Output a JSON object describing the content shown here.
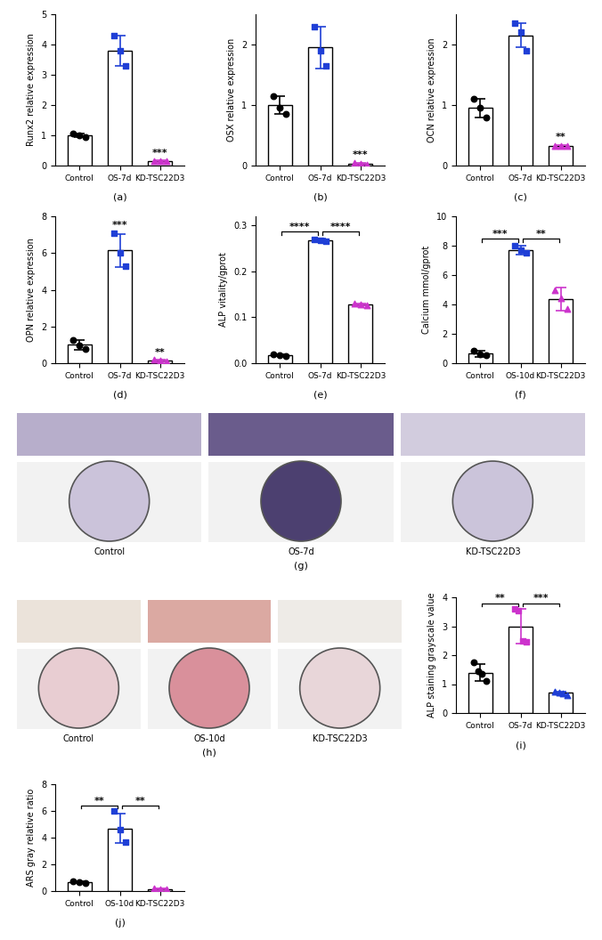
{
  "chart_data": [
    {
      "type": "bar",
      "panel_label": "(a)",
      "ylabel": "Runx2 relative expression",
      "categories": [
        "Control",
        "OS-7d",
        "KD-TSC22D3"
      ],
      "values": [
        1.0,
        3.8,
        0.15
      ],
      "errors": [
        0.05,
        0.5,
        0.02
      ],
      "points": [
        [
          1.05,
          1.0,
          0.95
        ],
        [
          4.3,
          3.8,
          3.3
        ],
        [
          0.15,
          0.15,
          0.15
        ]
      ],
      "colors": [
        "#000000",
        "#1f3fd6",
        "#cc33cc"
      ],
      "ylim": [
        0,
        5
      ],
      "yticks": [
        0,
        1,
        2,
        3,
        4,
        5
      ],
      "significance": [
        {
          "index": 2,
          "text": "***"
        }
      ],
      "comparisons": []
    },
    {
      "type": "bar",
      "panel_label": "(b)",
      "ylabel": "OSX relative expression",
      "categories": [
        "Control",
        "OS-7d",
        "KD-TSC22D3"
      ],
      "values": [
        1.0,
        1.95,
        0.03
      ],
      "errors": [
        0.15,
        0.35,
        0.02
      ],
      "points": [
        [
          1.15,
          0.95,
          0.85
        ],
        [
          2.3,
          1.9,
          1.65
        ],
        [
          0.04,
          0.03,
          0.02
        ]
      ],
      "colors": [
        "#000000",
        "#1f3fd6",
        "#cc33cc"
      ],
      "ylim": [
        0,
        2.5
      ],
      "yticks": [
        0,
        1,
        2
      ],
      "significance": [
        {
          "index": 2,
          "text": "***"
        }
      ],
      "comparisons": []
    },
    {
      "type": "bar",
      "panel_label": "(c)",
      "ylabel": "OCN relative expression",
      "categories": [
        "Control",
        "OS-7d",
        "KD-TSC22D3"
      ],
      "values": [
        0.95,
        2.15,
        0.32
      ],
      "errors": [
        0.15,
        0.2,
        0.02
      ],
      "points": [
        [
          1.1,
          0.95,
          0.8
        ],
        [
          2.35,
          2.2,
          1.9
        ],
        [
          0.33,
          0.32,
          0.32
        ]
      ],
      "colors": [
        "#000000",
        "#1f3fd6",
        "#cc33cc"
      ],
      "ylim": [
        0,
        2.5
      ],
      "yticks": [
        0,
        1,
        2
      ],
      "significance": [
        {
          "index": 2,
          "text": "**"
        }
      ],
      "comparisons": []
    },
    {
      "type": "bar",
      "panel_label": "(d)",
      "ylabel": "OPN relative expression",
      "categories": [
        "Control",
        "OS-7d",
        "KD-TSC22D3"
      ],
      "values": [
        1.0,
        6.15,
        0.15
      ],
      "errors": [
        0.25,
        0.9,
        0.05
      ],
      "points": [
        [
          1.25,
          0.95,
          0.8
        ],
        [
          7.1,
          6.0,
          5.3
        ],
        [
          0.2,
          0.15,
          0.1
        ]
      ],
      "colors": [
        "#000000",
        "#1f3fd6",
        "#cc33cc"
      ],
      "ylim": [
        0,
        8
      ],
      "yticks": [
        0,
        2,
        4,
        6,
        8
      ],
      "significance": [
        {
          "index": 1,
          "text": "***"
        },
        {
          "index": 2,
          "text": "**"
        }
      ],
      "comparisons": []
    },
    {
      "type": "bar",
      "panel_label": "(e)",
      "ylabel": "ALP vitality/gprot",
      "categories": [
        "Control",
        "OS-7d",
        "KD-TSC22D3"
      ],
      "values": [
        0.018,
        0.268,
        0.128
      ],
      "errors": [
        0.002,
        0.003,
        0.002
      ],
      "points": [
        [
          0.02,
          0.018,
          0.016
        ],
        [
          0.27,
          0.268,
          0.266
        ],
        [
          0.13,
          0.128,
          0.126
        ]
      ],
      "colors": [
        "#000000",
        "#1f3fd6",
        "#cc33cc"
      ],
      "ylim": [
        0,
        0.32
      ],
      "yticks": [
        {
          "value": 0,
          "label": "0.0"
        },
        {
          "value": 0.1,
          "label": "0.1"
        },
        {
          "value": 0.2,
          "label": "0.2"
        },
        {
          "value": 0.3,
          "label": "0.3"
        }
      ],
      "significance": [],
      "comparisons": [
        {
          "from": 0,
          "to": 1,
          "text": "****"
        },
        {
          "from": 1,
          "to": 2,
          "text": "****"
        }
      ]
    },
    {
      "type": "bar",
      "panel_label": "(f)",
      "ylabel": "Calcium mmol/gprot",
      "categories": [
        "Control",
        "OS-10d",
        "KD-TSC22D3"
      ],
      "values": [
        0.65,
        7.7,
        4.35
      ],
      "errors": [
        0.2,
        0.3,
        0.8
      ],
      "points": [
        [
          0.85,
          0.6,
          0.55
        ],
        [
          8.0,
          7.7,
          7.5
        ],
        [
          5.0,
          4.4,
          3.7
        ]
      ],
      "colors": [
        "#000000",
        "#1f3fd6",
        "#cc33cc"
      ],
      "ylim": [
        0,
        10
      ],
      "yticks": [
        0,
        2,
        4,
        6,
        8,
        10
      ],
      "significance": [],
      "comparisons": [
        {
          "from": 0,
          "to": 1,
          "text": "***"
        },
        {
          "from": 1,
          "to": 2,
          "text": "**"
        }
      ]
    },
    {
      "type": "bar",
      "panel_label": "(i)",
      "ylabel": "ALP staining grayscale value",
      "categories": [
        "Control",
        "OS-7d",
        "KD-TSC22D3"
      ],
      "values": [
        1.4,
        3.0,
        0.7
      ],
      "errors": [
        0.3,
        0.6,
        0.05
      ],
      "points": [
        [
          1.75,
          1.45,
          1.35,
          1.1
        ],
        [
          3.6,
          3.55,
          2.5,
          2.45
        ],
        [
          0.75,
          0.72,
          0.68,
          0.62
        ]
      ],
      "colors": [
        "#000000",
        "#cc33cc",
        "#1f3fd6"
      ],
      "ylim": [
        0,
        4
      ],
      "yticks": [
        0,
        1,
        2,
        3,
        4
      ],
      "significance": [],
      "comparisons": [
        {
          "from": 0,
          "to": 1,
          "text": "**"
        },
        {
          "from": 1,
          "to": 2,
          "text": "***"
        }
      ]
    },
    {
      "type": "bar",
      "panel_label": "(j)",
      "ylabel": "ARS gray relative ratio",
      "categories": [
        "Control",
        "OS-10d",
        "KD-TSC22D3"
      ],
      "values": [
        0.65,
        4.7,
        0.15
      ],
      "errors": [
        0.08,
        1.1,
        0.03
      ],
      "points": [
        [
          0.75,
          0.65,
          0.6
        ],
        [
          6.0,
          4.6,
          3.7
        ],
        [
          0.17,
          0.15,
          0.13
        ]
      ],
      "colors": [
        "#000000",
        "#1f3fd6",
        "#cc33cc"
      ],
      "ylim": [
        0,
        8
      ],
      "yticks": [
        0,
        2,
        4,
        6,
        8
      ],
      "significance": [],
      "comparisons": [
        {
          "from": 0,
          "to": 1,
          "text": "**"
        },
        {
          "from": 1,
          "to": 2,
          "text": "**"
        }
      ]
    }
  ],
  "image_panels": [
    {
      "panel_label": "(g)",
      "categories": [
        "Control",
        "OS-7d",
        "KD-TSC22D3"
      ]
    },
    {
      "panel_label": "(h)",
      "categories": [
        "Control",
        "OS-10d",
        "KD-TSC22D3"
      ]
    }
  ]
}
